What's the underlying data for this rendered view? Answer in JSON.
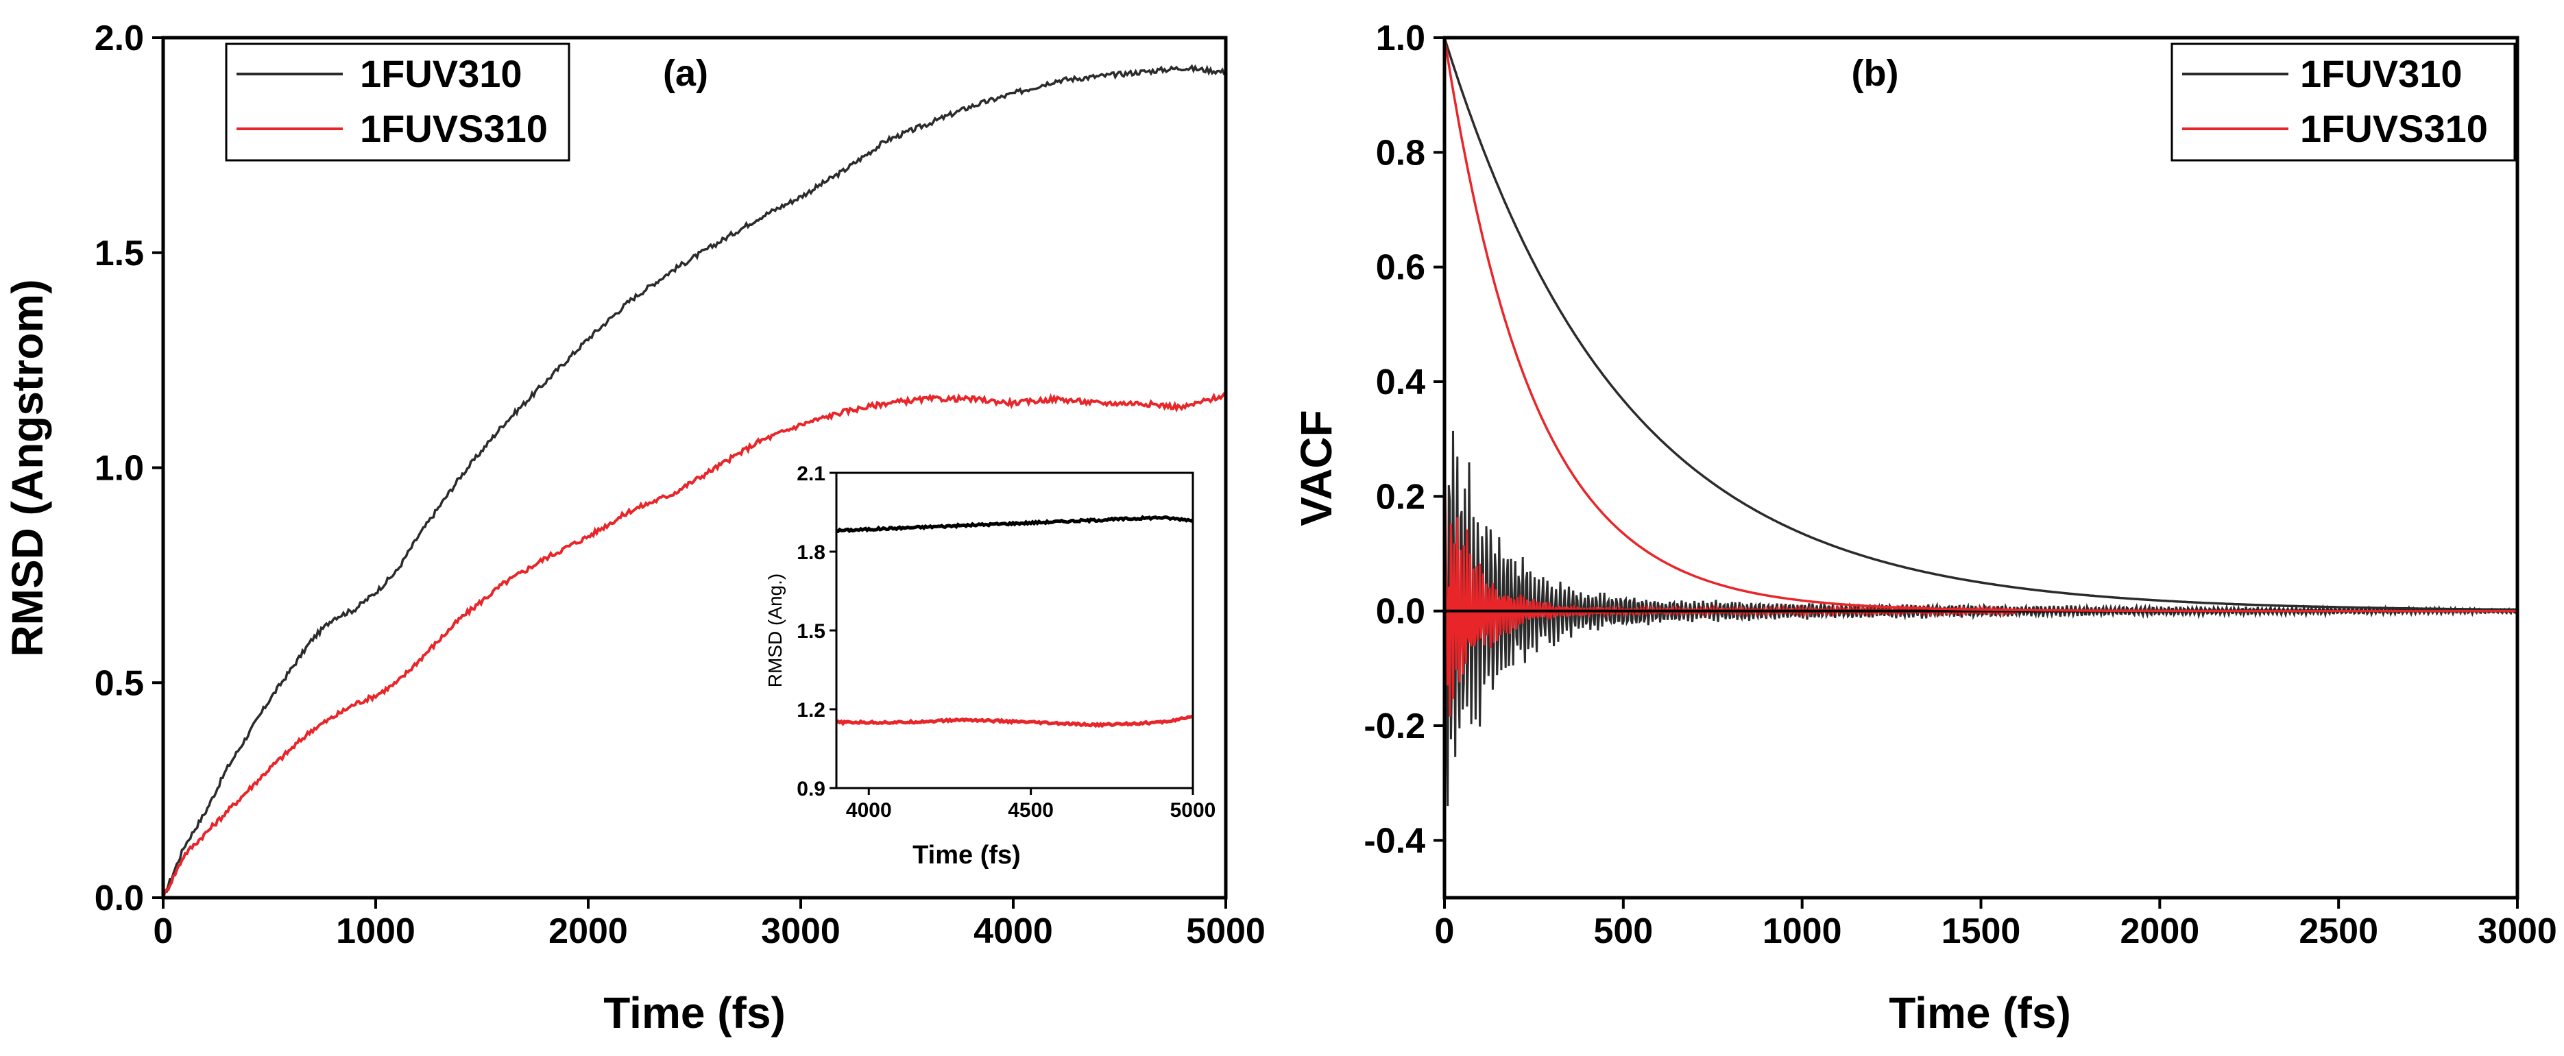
{
  "colors": {
    "series_black": "#2b2b2b",
    "series_red": "#e8262a",
    "axis": "#000000"
  },
  "chart_data": [
    {
      "id": "a",
      "type": "line",
      "panel_label": "(a)",
      "xlabel": "Time (fs)",
      "ylabel": "RMSD (Angstrom)",
      "xlim": [
        0,
        5000
      ],
      "ylim": [
        0,
        2.0
      ],
      "xticks": [
        0,
        1000,
        2000,
        3000,
        4000,
        5000
      ],
      "yticks": [
        0.0,
        0.5,
        1.0,
        1.5,
        2.0
      ],
      "ytick_labels": [
        "0.0",
        "0.5",
        "1.0",
        "1.5",
        "2.0"
      ],
      "legend_position": "top-left",
      "series": [
        {
          "name": "1FUV310",
          "color": "#2b2b2b",
          "x": [
            0,
            100,
            200,
            300,
            500,
            700,
            800,
            900,
            1000,
            1100,
            1200,
            1400,
            1600,
            1800,
            2000,
            2200,
            2400,
            2600,
            2800,
            3000,
            3200,
            3400,
            3600,
            3800,
            4000,
            4200,
            4400,
            4600,
            4800,
            5000
          ],
          "y": [
            0.0,
            0.12,
            0.2,
            0.3,
            0.46,
            0.6,
            0.65,
            0.67,
            0.71,
            0.76,
            0.84,
            0.98,
            1.1,
            1.2,
            1.3,
            1.39,
            1.46,
            1.52,
            1.58,
            1.63,
            1.69,
            1.76,
            1.8,
            1.84,
            1.87,
            1.9,
            1.91,
            1.92,
            1.93,
            1.92
          ]
        },
        {
          "name": "1FUVS310",
          "color": "#e8262a",
          "x": [
            0,
            100,
            200,
            300,
            500,
            700,
            900,
            1000,
            1100,
            1200,
            1400,
            1600,
            1800,
            2000,
            2200,
            2400,
            2600,
            2800,
            3000,
            3200,
            3400,
            3600,
            3800,
            4000,
            4200,
            4400,
            4600,
            4800,
            5000
          ],
          "y": [
            0.0,
            0.1,
            0.15,
            0.2,
            0.3,
            0.39,
            0.45,
            0.47,
            0.5,
            0.55,
            0.65,
            0.73,
            0.79,
            0.84,
            0.9,
            0.94,
            1.0,
            1.06,
            1.1,
            1.13,
            1.15,
            1.16,
            1.16,
            1.15,
            1.16,
            1.15,
            1.15,
            1.14,
            1.17
          ]
        }
      ],
      "inset": {
        "xlabel": "Time (fs)",
        "ylabel": "RMSD (Ang.)",
        "xlim": [
          3900,
          5000
        ],
        "ylim": [
          0.9,
          2.1
        ],
        "xticks": [
          4000,
          4500,
          5000
        ],
        "yticks": [
          0.9,
          1.2,
          1.5,
          1.8,
          2.1
        ],
        "ytick_labels": [
          "0.9",
          "1.2",
          "1.5",
          "1.8",
          "2.1"
        ],
        "series": [
          {
            "name": "1FUV310",
            "color": "#000000",
            "x": [
              3900,
              4100,
              4300,
              4500,
              4700,
              4900,
              5000
            ],
            "y": [
              1.88,
              1.89,
              1.9,
              1.91,
              1.92,
              1.93,
              1.92
            ]
          },
          {
            "name": "1FUVS310",
            "color": "#e8262a",
            "x": [
              3900,
              4100,
              4300,
              4500,
              4700,
              4900,
              5000
            ],
            "y": [
              1.15,
              1.15,
              1.16,
              1.15,
              1.14,
              1.15,
              1.17
            ]
          }
        ]
      }
    },
    {
      "id": "b",
      "type": "line",
      "panel_label": "(b)",
      "xlabel": "Time (fs)",
      "ylabel": "VACF",
      "xlim": [
        0,
        3000
      ],
      "ylim": [
        -0.5,
        1.0
      ],
      "xticks": [
        0,
        500,
        1000,
        1500,
        2000,
        2500,
        3000
      ],
      "yticks": [
        -0.4,
        -0.2,
        0.0,
        0.2,
        0.4,
        0.6,
        0.8,
        1.0
      ],
      "ytick_labels": [
        "-0.4",
        "-0.2",
        "0.0",
        "0.2",
        "0.4",
        "0.6",
        "0.8",
        "1.0"
      ],
      "legend_position": "top-right",
      "series": [
        {
          "name": "1FUV310",
          "color": "#2b2b2b",
          "decay_fs": 500,
          "oscillation": "damped, amplitude ~0.45 near t=0, ~0.02 after 1500 fs"
        },
        {
          "name": "1FUVS310",
          "color": "#e8262a",
          "decay_fs": 250,
          "oscillation": "damped, amplitude ~0.3 near t=0, ~0.01 after 600 fs"
        }
      ]
    }
  ]
}
